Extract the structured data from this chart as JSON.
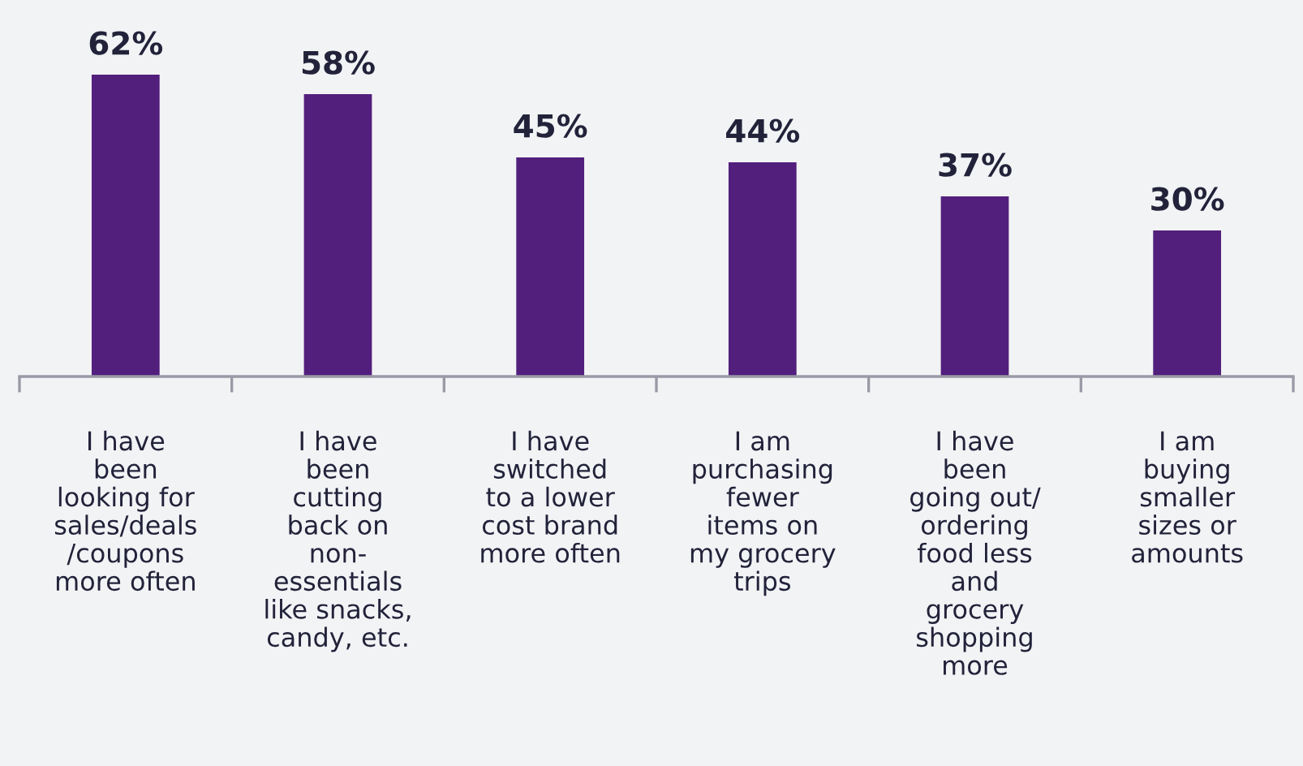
{
  "chart_data": {
    "type": "bar",
    "categories": [
      "I have\nbeen\nlooking for\nsales/deals\n/coupons\nmore often",
      "I have\nbeen\ncutting\nback on\nnon-\nessentials\nlike snacks,\ncandy, etc.",
      "I have\nswitched\nto a lower\ncost brand\nmore often",
      "I am\npurchasing\nfewer\nitems on\nmy grocery\ntrips",
      "I have\nbeen\ngoing out/\nordering\nfood less\nand\ngrocery\nshopping\nmore",
      "I am\nbuying\nsmaller\nsizes or\namounts"
    ],
    "values": [
      62,
      58,
      45,
      44,
      37,
      30
    ],
    "value_labels": [
      "62%",
      "58%",
      "45%",
      "44%",
      "37%",
      "30%"
    ],
    "color": "#521f7d",
    "grid": false,
    "legend": false
  }
}
